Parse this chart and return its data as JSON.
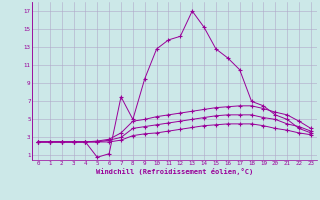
{
  "xlabel": "Windchill (Refroidissement éolien,°C)",
  "background_color": "#cce8e8",
  "grid_color": "#b0a8c8",
  "line_color": "#990099",
  "xlim": [
    -0.5,
    23.5
  ],
  "ylim": [
    0.5,
    18.0
  ],
  "xticks": [
    0,
    1,
    2,
    3,
    4,
    5,
    6,
    7,
    8,
    9,
    10,
    11,
    12,
    13,
    14,
    15,
    16,
    17,
    18,
    19,
    20,
    21,
    22,
    23
  ],
  "yticks": [
    1,
    3,
    5,
    7,
    9,
    11,
    13,
    15,
    17
  ],
  "series": [
    [
      2.5,
      2.5,
      2.5,
      2.5,
      2.5,
      0.8,
      1.2,
      7.5,
      5.0,
      9.5,
      12.8,
      13.8,
      14.2,
      17.0,
      15.2,
      12.8,
      11.8,
      10.5,
      7.0,
      6.5,
      5.5,
      5.0,
      4.0,
      3.5
    ],
    [
      2.5,
      2.5,
      2.5,
      2.5,
      2.5,
      2.6,
      2.8,
      3.5,
      4.8,
      5.0,
      5.3,
      5.5,
      5.7,
      5.9,
      6.1,
      6.3,
      6.4,
      6.5,
      6.5,
      6.2,
      5.8,
      5.5,
      4.8,
      4.0
    ],
    [
      2.5,
      2.5,
      2.5,
      2.5,
      2.5,
      2.5,
      2.7,
      3.0,
      4.0,
      4.2,
      4.4,
      4.6,
      4.8,
      5.0,
      5.2,
      5.4,
      5.5,
      5.5,
      5.5,
      5.2,
      5.0,
      4.5,
      4.2,
      3.7
    ],
    [
      2.5,
      2.5,
      2.5,
      2.5,
      2.5,
      2.5,
      2.5,
      2.7,
      3.2,
      3.4,
      3.5,
      3.7,
      3.9,
      4.1,
      4.3,
      4.4,
      4.5,
      4.5,
      4.5,
      4.3,
      4.0,
      3.8,
      3.5,
      3.3
    ]
  ]
}
